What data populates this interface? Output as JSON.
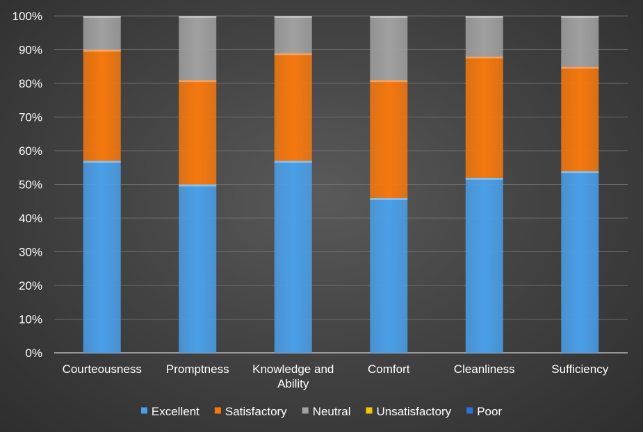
{
  "chart_data": {
    "type": "bar",
    "stacked": true,
    "percent": true,
    "categories": [
      [
        "Courteousness"
      ],
      [
        "Promptness"
      ],
      [
        "Knowledge and",
        "Ability"
      ],
      [
        "Comfort"
      ],
      [
        "Cleanliness"
      ],
      [
        "Sufficiency"
      ]
    ],
    "series": [
      {
        "name": "Excellent",
        "color": "#4a9fe8",
        "values": [
          57,
          50,
          57,
          46,
          52,
          54
        ]
      },
      {
        "name": "Satisfactory",
        "color": "#f5780e",
        "values": [
          33,
          31,
          32,
          35,
          36,
          31
        ]
      },
      {
        "name": "Neutral",
        "color": "#a0a0a0",
        "values": [
          10,
          19,
          11,
          19,
          12,
          15
        ]
      },
      {
        "name": "Unsatisfactory",
        "color": "#f2c40a",
        "values": [
          0,
          0,
          0,
          0,
          0,
          0
        ]
      },
      {
        "name": "Poor",
        "color": "#2f6fd6",
        "values": [
          0,
          0,
          0,
          0,
          0,
          0
        ]
      }
    ],
    "yticks": [
      "0%",
      "10%",
      "20%",
      "30%",
      "40%",
      "50%",
      "60%",
      "70%",
      "80%",
      "90%",
      "100%"
    ],
    "ylim": [
      0,
      100
    ],
    "grid": true,
    "legend_position": "bottom",
    "title": "",
    "xlabel": "",
    "ylabel": ""
  }
}
